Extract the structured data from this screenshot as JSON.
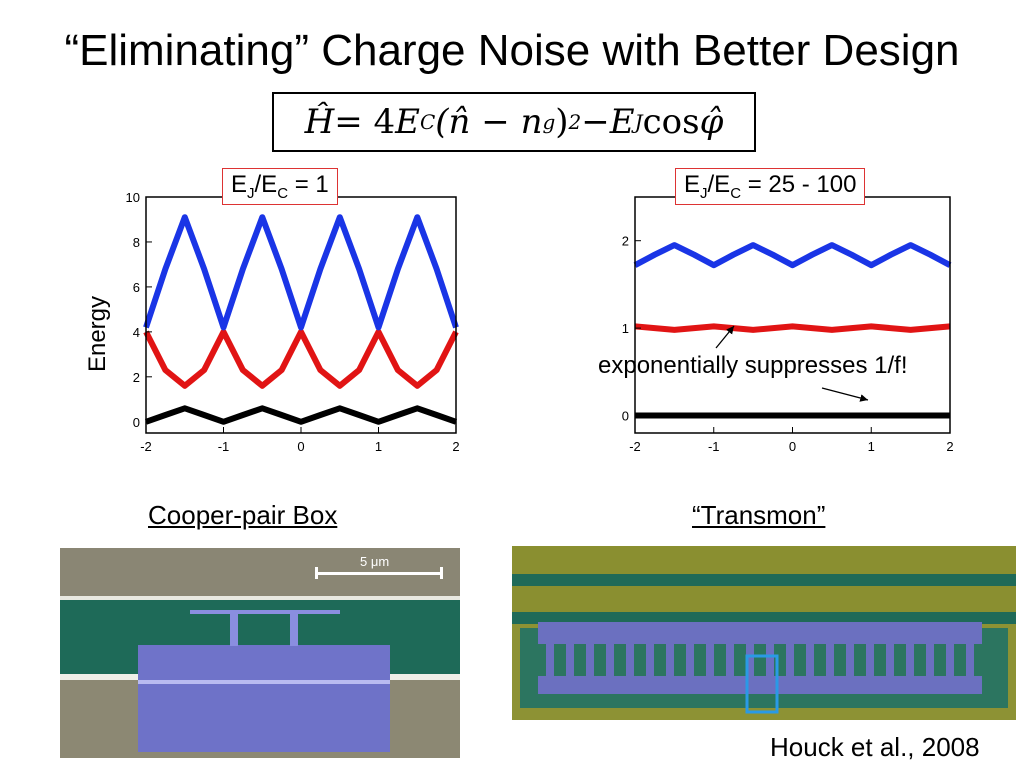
{
  "slide": {
    "title": "“Eliminating” Charge Noise with Better Design",
    "formula": {
      "H": "Ĥ",
      "eq": " = 4",
      "EC_base": "E",
      "EC_sub": "C",
      "paren": " (n̂ − n",
      "ng_sub": "g",
      "close": ")",
      "sq": "2",
      "minus": " − ",
      "EJ_base": "E",
      "EJ_sub": "J",
      "cos": " cos ",
      "phi": "φ̂"
    },
    "left_ratio": {
      "a": "E",
      "a_sub": "J",
      "slash": "/E",
      "b_sub": "C",
      "rest": " = 1"
    },
    "right_ratio": {
      "a": "E",
      "a_sub": "J",
      "slash": "/E",
      "b_sub": "C",
      "rest": " = 25 - 100"
    },
    "y_axis_label": "Energy",
    "annotation": "exponentially suppresses 1/f!",
    "caption_left": "Cooper-pair Box",
    "caption_right": "“Transmon”",
    "scale_bar_label": "5 μm",
    "citation": "Houck et al., 2008",
    "colors": {
      "ground": "#000000",
      "first": "#e11414",
      "second": "#1a35e6",
      "box": "#dd3333"
    }
  },
  "chart_data": [
    {
      "type": "line",
      "title": "",
      "xlabel": "",
      "ylabel": "Energy",
      "xlim": [
        -2,
        2
      ],
      "ylim": [
        -0.5,
        10
      ],
      "xticks": [
        -2,
        -1,
        0,
        1,
        2
      ],
      "yticks": [
        0,
        2,
        4,
        6,
        8,
        10
      ],
      "grid": false,
      "series": [
        {
          "color": "#000000",
          "x": [
            -2,
            -1.75,
            -1.5,
            -1.25,
            -1,
            -0.75,
            -0.5,
            -0.25,
            0,
            0.25,
            0.5,
            0.75,
            1,
            1.25,
            1.5,
            1.75,
            2
          ],
          "y": [
            0,
            0.3,
            0.6,
            0.3,
            0,
            0.3,
            0.6,
            0.3,
            0,
            0.3,
            0.6,
            0.3,
            0,
            0.3,
            0.6,
            0.3,
            0
          ]
        },
        {
          "color": "#e11414",
          "x": [
            -2,
            -1.75,
            -1.5,
            -1.25,
            -1,
            -0.75,
            -0.5,
            -0.25,
            0,
            0.25,
            0.5,
            0.75,
            1,
            1.25,
            1.5,
            1.75,
            2
          ],
          "y": [
            4,
            2.3,
            1.6,
            2.3,
            4,
            2.3,
            1.6,
            2.3,
            4,
            2.3,
            1.6,
            2.3,
            4,
            2.3,
            1.6,
            2.3,
            4
          ]
        },
        {
          "color": "#1a35e6",
          "x": [
            -2,
            -1.75,
            -1.5,
            -1.25,
            -1,
            -0.75,
            -0.5,
            -0.25,
            0,
            0.25,
            0.5,
            0.75,
            1,
            1.25,
            1.5,
            1.75,
            2
          ],
          "y": [
            4.2,
            6.8,
            9.1,
            6.8,
            4.2,
            6.8,
            9.1,
            6.8,
            4.2,
            6.8,
            9.1,
            6.8,
            4.2,
            6.8,
            9.1,
            6.8,
            4.2
          ]
        }
      ]
    },
    {
      "type": "line",
      "title": "",
      "xlabel": "",
      "ylabel": "",
      "xlim": [
        -2,
        2
      ],
      "ylim": [
        -0.2,
        2.5
      ],
      "xticks": [
        -2,
        -1,
        0,
        1,
        2
      ],
      "yticks": [
        0,
        1,
        2
      ],
      "grid": false,
      "series": [
        {
          "color": "#000000",
          "x": [
            -2,
            -1,
            0,
            1,
            2
          ],
          "y": [
            0,
            0,
            0,
            0,
            0
          ]
        },
        {
          "color": "#e11414",
          "x": [
            -2,
            -1.5,
            -1,
            -0.5,
            0,
            0.5,
            1,
            1.5,
            2
          ],
          "y": [
            1.02,
            0.98,
            1.02,
            0.98,
            1.02,
            0.98,
            1.02,
            0.98,
            1.02
          ]
        },
        {
          "color": "#1a35e6",
          "x": [
            -2,
            -1.75,
            -1.5,
            -1.25,
            -1,
            -0.75,
            -0.5,
            -0.25,
            0,
            0.25,
            0.5,
            0.75,
            1,
            1.25,
            1.5,
            1.75,
            2
          ],
          "y": [
            1.72,
            1.84,
            1.95,
            1.84,
            1.72,
            1.84,
            1.95,
            1.84,
            1.72,
            1.84,
            1.95,
            1.84,
            1.72,
            1.84,
            1.95,
            1.84,
            1.72
          ]
        }
      ]
    }
  ]
}
